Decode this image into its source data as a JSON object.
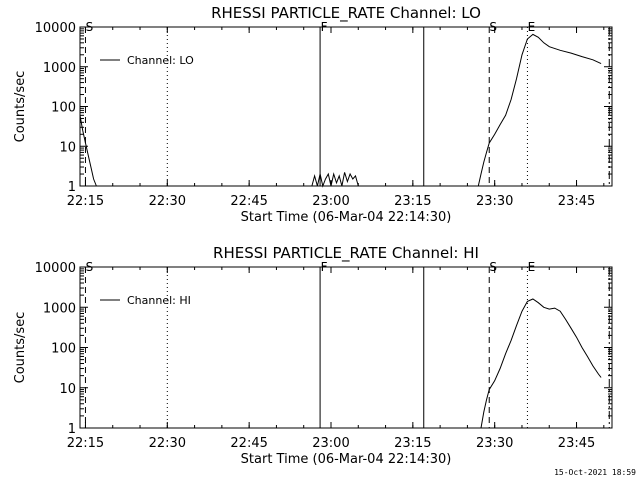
{
  "footer_stamp": "15-Oct-2021 18:59",
  "chart_data": [
    {
      "type": "line",
      "title": "RHESSI PARTICLE_RATE Channel: LO",
      "xlabel": "Start Time (06-Mar-04 22:14:30)",
      "ylabel": "Counts/sec",
      "yscale": "log",
      "xlim": [
        "22:14:00",
        "23:51:30"
      ],
      "ylim": [
        1,
        10000
      ],
      "xticks": [
        "22:15",
        "22:30",
        "22:45",
        "23:00",
        "23:15",
        "23:30",
        "23:45"
      ],
      "yticks": [
        "1",
        "10",
        "100",
        "1000",
        "10000"
      ],
      "legend": {
        "position": "top-left",
        "entries": [
          "Channel: LO"
        ]
      },
      "series": [
        {
          "name": "Channel: LO",
          "x": [
            "22:14:00",
            "22:14:30",
            "22:15:00",
            "22:15:30",
            "22:16:00",
            "22:16:30",
            "22:17:00",
            "22:17:30",
            "22:18:00",
            "22:56:30",
            "22:57:00",
            "22:57:30",
            "22:58:00",
            "22:58:30",
            "22:59:00",
            "22:59:30",
            "23:00:00",
            "23:00:30",
            "23:01:00",
            "23:01:30",
            "23:02:00",
            "23:02:30",
            "23:03:00",
            "23:03:30",
            "23:04:00",
            "23:04:30",
            "23:05:00",
            "23:27:00",
            "23:27:30",
            "23:28:00",
            "23:28:30",
            "23:29:00",
            "23:30:00",
            "23:31:00",
            "23:32:00",
            "23:33:00",
            "23:34:00",
            "23:35:00",
            "23:36:00",
            "23:37:00",
            "23:38:00",
            "23:39:00",
            "23:40:00",
            "23:42:00",
            "23:44:00",
            "23:46:00",
            "23:48:00",
            "23:49:30"
          ],
          "y": [
            60,
            25,
            12,
            6,
            3,
            1.5,
            1,
            null,
            null,
            1,
            1.8,
            1,
            2,
            1,
            1.5,
            2,
            1,
            2,
            1.2,
            1.8,
            1,
            2.2,
            1.3,
            2,
            1.5,
            1.8,
            1,
            1,
            2,
            4,
            7,
            12,
            20,
            35,
            60,
            150,
            500,
            2000,
            5000,
            6500,
            5500,
            4000,
            3200,
            2600,
            2200,
            1800,
            1500,
            1200
          ]
        }
      ],
      "annotations": [
        {
          "label": "S",
          "x": "22:15:00",
          "style": "dashed"
        },
        {
          "label": "F",
          "x": "22:58:00",
          "style": "solid"
        },
        {
          "label": "",
          "x": "23:17:00",
          "style": "solid"
        },
        {
          "label": "S",
          "x": "23:29:00",
          "style": "dashed"
        },
        {
          "label": "E",
          "x": "23:36:00",
          "style": "dotted"
        },
        {
          "label": "",
          "x": "23:51:00",
          "style": "dash-dot"
        },
        {
          "label": "",
          "x": "22:30:00",
          "style": "dotted"
        }
      ]
    },
    {
      "type": "line",
      "title": "RHESSI PARTICLE_RATE Channel: HI",
      "xlabel": "Start Time (06-Mar-04 22:14:30)",
      "ylabel": "Counts/sec",
      "yscale": "log",
      "xlim": [
        "22:14:00",
        "23:51:30"
      ],
      "ylim": [
        1,
        10000
      ],
      "xticks": [
        "22:15",
        "22:30",
        "22:45",
        "23:00",
        "23:15",
        "23:30",
        "23:45"
      ],
      "yticks": [
        "1",
        "10",
        "100",
        "1000",
        "10000"
      ],
      "legend": {
        "position": "top-left",
        "entries": [
          "Channel: HI"
        ]
      },
      "series": [
        {
          "name": "Channel: HI",
          "x": [
            "23:27:30",
            "23:28:00",
            "23:28:30",
            "23:29:00",
            "23:30:00",
            "23:31:00",
            "23:32:00",
            "23:33:00",
            "23:34:00",
            "23:35:00",
            "23:36:00",
            "23:37:00",
            "23:38:00",
            "23:39:00",
            "23:40:00",
            "23:41:00",
            "23:42:00",
            "23:43:00",
            "23:44:00",
            "23:45:00",
            "23:46:00",
            "23:47:00",
            "23:48:00",
            "23:49:00",
            "23:49:30"
          ],
          "y": [
            1,
            2.5,
            5,
            9,
            15,
            30,
            70,
            150,
            350,
            800,
            1400,
            1600,
            1300,
            1000,
            900,
            950,
            800,
            500,
            300,
            180,
            100,
            60,
            35,
            22,
            18
          ]
        }
      ],
      "annotations": [
        {
          "label": "S",
          "x": "22:15:00",
          "style": "dashed"
        },
        {
          "label": "F",
          "x": "22:58:00",
          "style": "solid"
        },
        {
          "label": "",
          "x": "23:17:00",
          "style": "solid"
        },
        {
          "label": "S",
          "x": "23:29:00",
          "style": "dashed"
        },
        {
          "label": "E",
          "x": "23:36:00",
          "style": "dotted"
        },
        {
          "label": "",
          "x": "23:51:00",
          "style": "dash-dot"
        },
        {
          "label": "",
          "x": "22:30:00",
          "style": "dotted"
        }
      ]
    }
  ]
}
